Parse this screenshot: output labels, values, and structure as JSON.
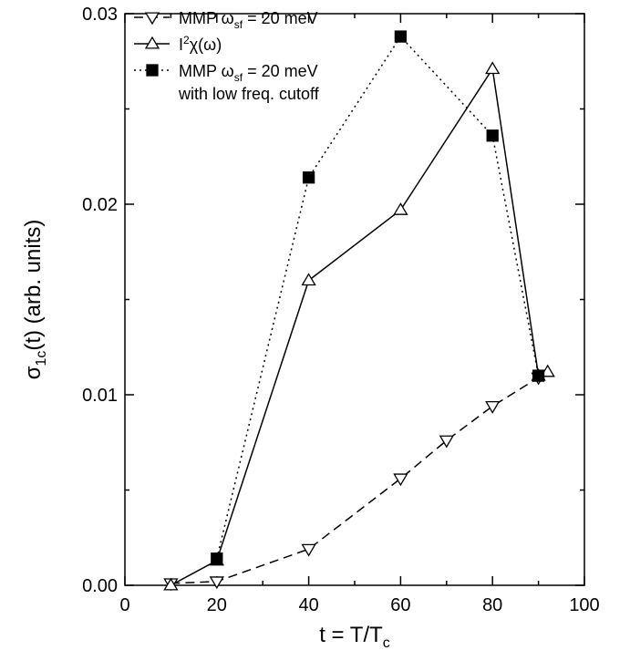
{
  "chart_data": {
    "type": "line",
    "xlabel": [
      "t = T/T",
      "c"
    ],
    "ylabel": [
      "σ",
      "1c",
      "(t) (arb. units)"
    ],
    "xlim": [
      0,
      100
    ],
    "xticks": [
      0,
      20,
      40,
      60,
      80,
      100
    ],
    "ylim": [
      0,
      0.03
    ],
    "yticks": [
      {
        "value": 0,
        "label": "0.00"
      },
      {
        "value": 0.01,
        "label": "0.01"
      },
      {
        "value": 0.02,
        "label": "0.02"
      },
      {
        "value": 0.03,
        "label": "0.03"
      }
    ],
    "series": [
      {
        "name": [
          "MMP ω",
          "sf",
          " = 20 meV"
        ],
        "color": "#000000",
        "dash": "dashed",
        "marker": "triangle-down",
        "x": [
          10,
          20,
          40,
          60,
          70,
          80,
          90
        ],
        "values": [
          0.0001,
          0.0002,
          0.0019,
          0.0056,
          0.0076,
          0.0094,
          0.0109
        ]
      },
      {
        "name": [
          "I",
          "2",
          "χ(ω)"
        ],
        "color": "#000000",
        "dash": "solid",
        "marker": "triangle-up",
        "x": [
          10,
          20,
          40,
          60,
          80,
          90,
          92
        ],
        "values": [
          0,
          0.0013,
          0.016,
          0.0197,
          0.0271,
          0.011,
          0.0112
        ]
      },
      {
        "name": [
          "MMP ω",
          "sf",
          " = 20 meV"
        ],
        "name_line2": "with low freq. cutoff",
        "color": "#000000",
        "dash": "dotted",
        "marker": "square",
        "x": [
          20,
          40,
          60,
          80,
          90
        ],
        "values": [
          0.0014,
          0.0214,
          0.0288,
          0.0236,
          0.011
        ]
      }
    ]
  }
}
